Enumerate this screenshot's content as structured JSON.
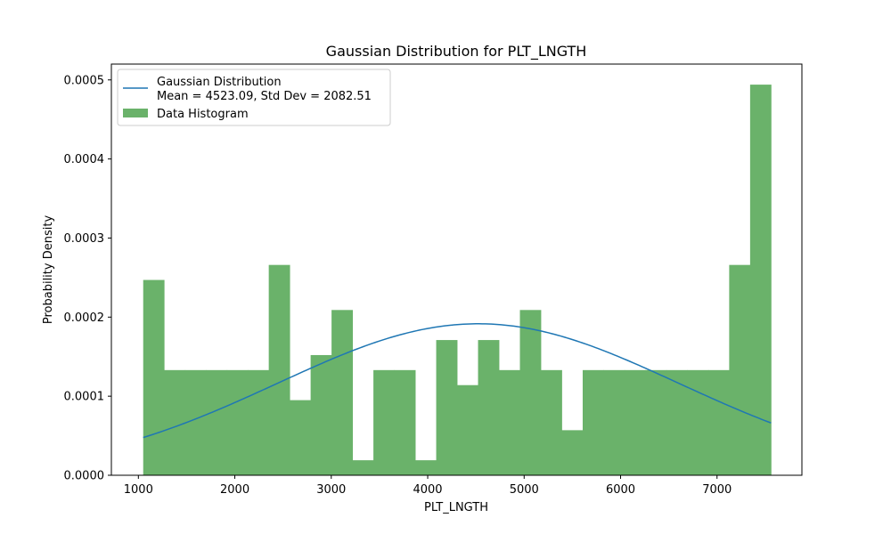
{
  "chart_data": {
    "type": "bar",
    "title": "Gaussian Distribution for PLT_LNGTH",
    "xlabel": "PLT_LNGTH",
    "ylabel": "Probability Density",
    "xlim": [
      720,
      7880
    ],
    "ylim": [
      0,
      0.00052
    ],
    "xticks": [
      1000,
      2000,
      3000,
      4000,
      5000,
      6000,
      7000
    ],
    "yticks": [
      0.0,
      0.0001,
      0.0002,
      0.0003,
      0.0004,
      0.0005
    ],
    "xtick_labels": [
      "1000",
      "2000",
      "3000",
      "4000",
      "5000",
      "6000",
      "7000"
    ],
    "ytick_labels": [
      "0.0000",
      "0.0001",
      "0.0002",
      "0.0003",
      "0.0004",
      "0.0005"
    ],
    "histogram": {
      "name": "Data Histogram",
      "color": "#6ab26a",
      "bin_edges": [
        1050,
        1267,
        1484,
        1701,
        1918,
        2135,
        2352,
        2569,
        2786,
        3003,
        3220,
        3437,
        3654,
        3871,
        4088,
        4305,
        4522,
        4739,
        4956,
        5173,
        5390,
        5607,
        5824,
        6041,
        6258,
        6475,
        6692,
        6909,
        7126,
        7343,
        7560
      ],
      "densities": [
        0.000247,
        0.000133,
        0.000133,
        0.000133,
        0.000133,
        0.000133,
        0.000266,
        9.5e-05,
        0.000152,
        0.000209,
        1.9e-05,
        0.000133,
        0.000133,
        1.9e-05,
        0.000171,
        0.000114,
        0.000171,
        0.000133,
        0.000209,
        0.000133,
        5.7e-05,
        0.000133,
        0.000133,
        0.000133,
        0.000133,
        0.000133,
        0.000133,
        0.000133,
        0.000266,
        0.000494
      ]
    },
    "gaussian": {
      "name": "Gaussian Distribution",
      "detail": "Mean = 4523.09, Std Dev = 2082.51",
      "mean": 4523.09,
      "std": 2082.51,
      "x_range": [
        1050,
        7560
      ],
      "color": "#1f77b4"
    },
    "grid": false,
    "legend_position": "upper-left"
  }
}
